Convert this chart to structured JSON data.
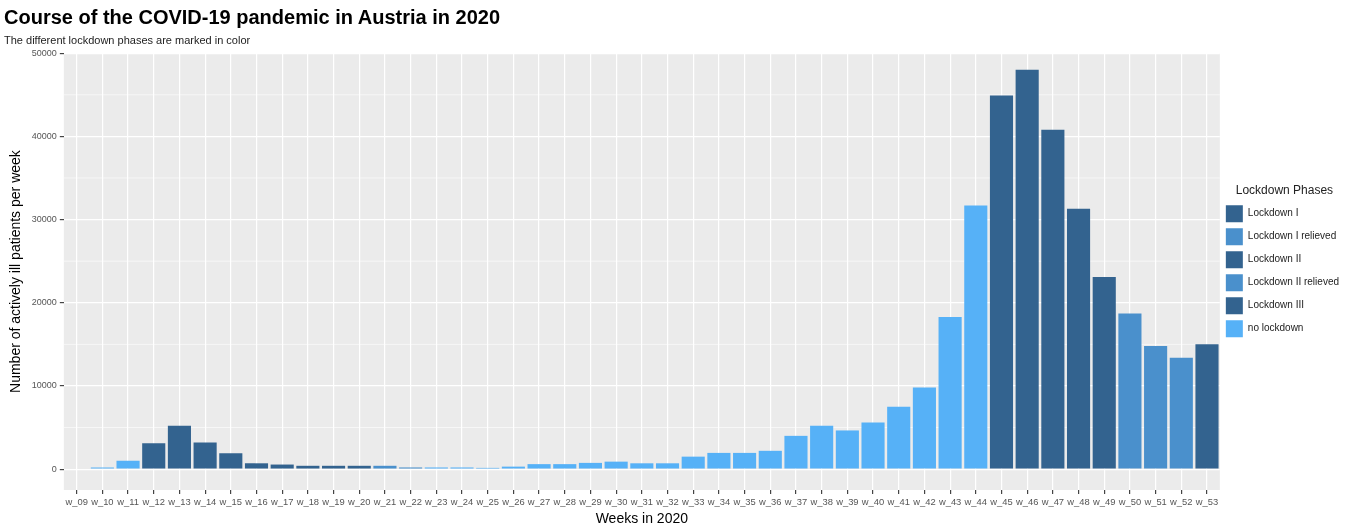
{
  "chart_data": {
    "type": "bar",
    "title": "Course of the COVID-19 pandemic in Austria in 2020",
    "subtitle": "The different lockdown phases are marked in color",
    "xlabel": "Weeks in 2020",
    "ylabel": "Number of actively ill patients per week",
    "legend_title": "Lockdown Phases",
    "categories": [
      "w_09",
      "w_10",
      "w_11",
      "w_12",
      "w_13",
      "w_14",
      "w_15",
      "w_16",
      "w_17",
      "w_18",
      "w_19",
      "w_20",
      "w_21",
      "w_22",
      "w_23",
      "w_24",
      "w_25",
      "w_26",
      "w_27",
      "w_28",
      "w_29",
      "w_30",
      "w_31",
      "w_32",
      "w_33",
      "w_34",
      "w_35",
      "w_36",
      "w_37",
      "w_38",
      "w_39",
      "w_40",
      "w_41",
      "w_42",
      "w_43",
      "w_44",
      "w_45",
      "w_46",
      "w_47",
      "w_48",
      "w_49",
      "w_50",
      "w_51",
      "w_52",
      "w_53"
    ],
    "stacked": true,
    "series": [
      {
        "name": "Lockdown I",
        "color": "#33638f",
        "values": [
          null,
          null,
          null,
          3100,
          5200,
          3200,
          1900,
          700,
          550,
          400,
          400,
          400,
          null,
          null,
          null,
          null,
          null,
          null,
          null,
          null,
          null,
          null,
          null,
          null,
          null,
          null,
          null,
          null,
          null,
          null,
          null,
          null,
          null,
          null,
          null,
          null,
          null,
          null,
          null,
          null,
          null,
          null,
          null,
          null,
          null
        ]
      },
      {
        "name": "Lockdown I relieved",
        "color": "#4a90cc",
        "values": [
          null,
          null,
          null,
          null,
          null,
          null,
          null,
          null,
          null,
          null,
          null,
          null,
          400,
          200,
          null,
          null,
          null,
          null,
          null,
          null,
          null,
          null,
          null,
          null,
          null,
          null,
          null,
          null,
          null,
          null,
          null,
          null,
          null,
          null,
          null,
          null,
          null,
          null,
          null,
          null,
          null,
          null,
          null,
          null,
          null
        ]
      },
      {
        "name": "Lockdown II",
        "color": "#33638f",
        "values": [
          null,
          null,
          null,
          null,
          null,
          null,
          null,
          null,
          null,
          null,
          null,
          null,
          null,
          null,
          null,
          null,
          null,
          null,
          null,
          null,
          null,
          null,
          null,
          null,
          null,
          null,
          null,
          null,
          null,
          null,
          null,
          null,
          null,
          null,
          null,
          null,
          44900,
          48000,
          40800,
          31300,
          23100,
          null,
          null,
          null,
          null
        ]
      },
      {
        "name": "Lockdown II relieved",
        "color": "#4a90cc",
        "values": [
          null,
          null,
          null,
          null,
          null,
          null,
          null,
          null,
          null,
          null,
          null,
          null,
          null,
          null,
          null,
          null,
          null,
          null,
          null,
          null,
          null,
          null,
          null,
          null,
          null,
          null,
          null,
          null,
          null,
          null,
          null,
          null,
          null,
          null,
          null,
          null,
          null,
          null,
          null,
          null,
          null,
          18700,
          14800,
          13400,
          null
        ]
      },
      {
        "name": "Lockdown III",
        "color": "#33638f",
        "values": [
          null,
          null,
          null,
          null,
          null,
          null,
          null,
          null,
          null,
          null,
          null,
          null,
          null,
          null,
          null,
          null,
          null,
          null,
          null,
          null,
          null,
          null,
          null,
          null,
          null,
          null,
          null,
          null,
          null,
          null,
          null,
          null,
          null,
          null,
          null,
          null,
          null,
          null,
          null,
          null,
          null,
          null,
          null,
          null,
          15000
        ]
      },
      {
        "name": "no lockdown",
        "color": "#56b1f7",
        "values": [
          0,
          200,
          1000,
          null,
          null,
          null,
          null,
          null,
          null,
          null,
          null,
          null,
          null,
          null,
          200,
          200,
          150,
          300,
          600,
          600,
          750,
          900,
          700,
          700,
          1500,
          1950,
          1950,
          2200,
          4000,
          5200,
          4650,
          5600,
          7500,
          9800,
          18300,
          31700,
          null,
          null,
          null,
          null,
          null,
          null,
          null,
          null,
          null
        ]
      }
    ],
    "ylim": [
      -2500,
      50000
    ],
    "yticks": [
      0,
      10000,
      20000,
      30000,
      40000,
      50000
    ],
    "grid": true,
    "legend": "right"
  }
}
